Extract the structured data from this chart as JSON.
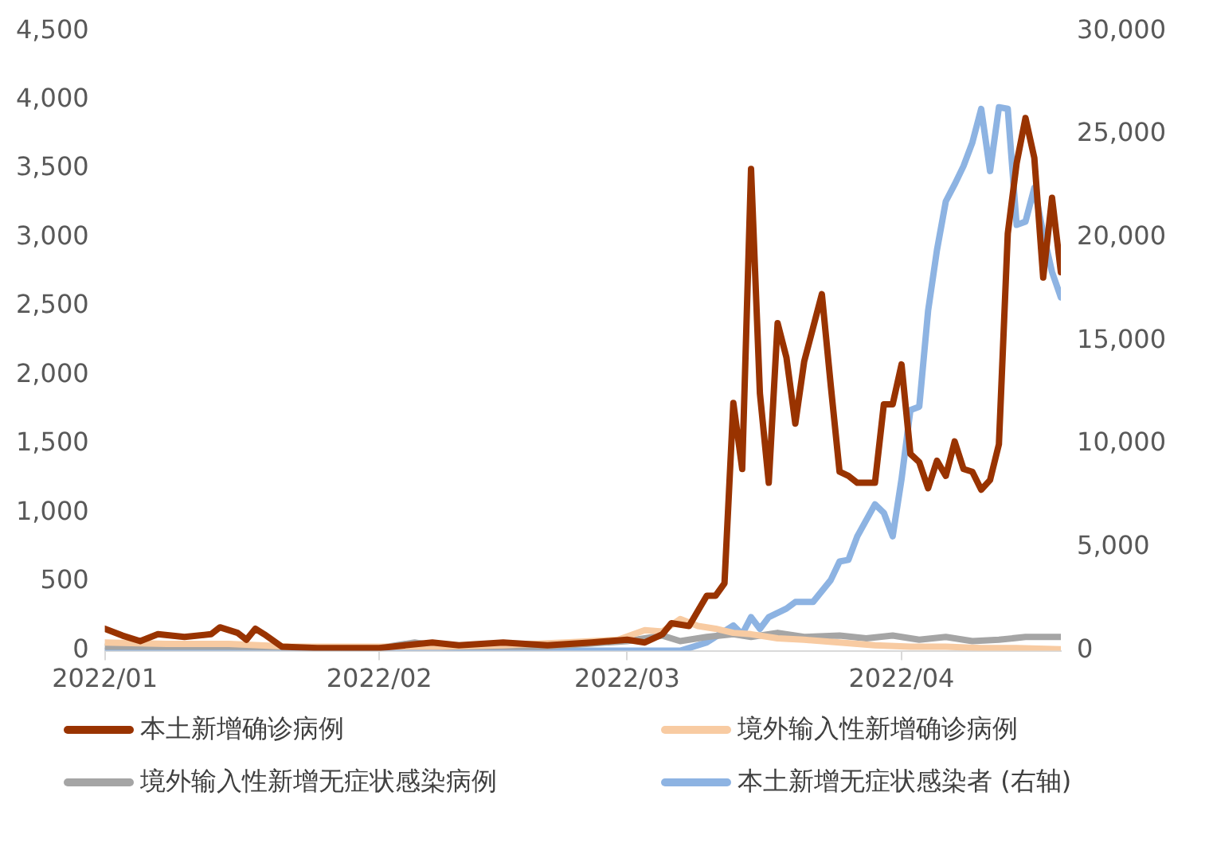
{
  "chart_data": {
    "type": "line",
    "legend": "bottom",
    "grid": false,
    "marker": "none",
    "line_style": "solid",
    "xlim": [
      "2022-01-01",
      "2022-04-19"
    ],
    "xticks": [
      {
        "value": "2022-01-01",
        "label": "2022/01"
      },
      {
        "value": "2022-02-01",
        "label": "2022/02"
      },
      {
        "value": "2022-03-01",
        "label": "2022/03"
      },
      {
        "value": "2022-04-01",
        "label": "2022/04"
      }
    ],
    "ylim": [
      0,
      4500
    ],
    "yticks": [
      0,
      500,
      {
        "value": 1000,
        "label": "1,000"
      },
      {
        "value": 1500,
        "label": "1,500"
      },
      {
        "value": 2000,
        "label": "2,000"
      },
      {
        "value": 2500,
        "label": "2,500"
      },
      {
        "value": 3000,
        "label": "3,000"
      },
      {
        "value": 3500,
        "label": "3,500"
      },
      {
        "value": 4000,
        "label": "4,000"
      },
      {
        "value": 4500,
        "label": "4,500"
      }
    ],
    "y2lim": [
      0,
      30000
    ],
    "y2ticks": [
      0,
      {
        "value": 5000,
        "label": "5,000"
      },
      {
        "value": 10000,
        "label": "10,000"
      },
      {
        "value": 15000,
        "label": "15,000"
      },
      {
        "value": 20000,
        "label": "20,000"
      },
      {
        "value": 25000,
        "label": "25,000"
      },
      {
        "value": 30000,
        "label": "30,000"
      }
    ],
    "series": [
      {
        "name": "本土新增确诊病例",
        "color": "#993300",
        "x": [
          "2022-01-01",
          "2022-01-03",
          "2022-01-05",
          "2022-01-07",
          "2022-01-10",
          "2022-01-13",
          "2022-01-14",
          "2022-01-16",
          "2022-01-17",
          "2022-01-18",
          "2022-01-19",
          "2022-01-21",
          "2022-01-25",
          "2022-02-01",
          "2022-02-07",
          "2022-02-10",
          "2022-02-15",
          "2022-02-20",
          "2022-02-25",
          "2022-03-01",
          "2022-03-03",
          "2022-03-05",
          "2022-03-06",
          "2022-03-08",
          "2022-03-10",
          "2022-03-11",
          "2022-03-12",
          "2022-03-13",
          "2022-03-14",
          "2022-03-15",
          "2022-03-16",
          "2022-03-17",
          "2022-03-18",
          "2022-03-19",
          "2022-03-20",
          "2022-03-21",
          "2022-03-23",
          "2022-03-24",
          "2022-03-25",
          "2022-03-26",
          "2022-03-27",
          "2022-03-29",
          "2022-03-30",
          "2022-03-31",
          "2022-04-01",
          "2022-04-02",
          "2022-04-03",
          "2022-04-04",
          "2022-04-05",
          "2022-04-06",
          "2022-04-07",
          "2022-04-08",
          "2022-04-09",
          "2022-04-10",
          "2022-04-11",
          "2022-04-12",
          "2022-04-13",
          "2022-04-14",
          "2022-04-15",
          "2022-04-16",
          "2022-04-17",
          "2022-04-18",
          "2022-04-19"
        ],
        "values": [
          160,
          110,
          70,
          120,
          100,
          120,
          170,
          130,
          80,
          160,
          120,
          30,
          20,
          20,
          60,
          40,
          60,
          40,
          60,
          80,
          60,
          120,
          200,
          180,
          400,
          400,
          490,
          1800,
          1320,
          3500,
          1870,
          1220,
          2380,
          2130,
          1650,
          2100,
          2590,
          1930,
          1300,
          1270,
          1220,
          1220,
          1790,
          1790,
          2080,
          1430,
          1370,
          1180,
          1380,
          1270,
          1520,
          1320,
          1300,
          1170,
          1240,
          1500,
          3030,
          3540,
          3870,
          3580,
          2710,
          3290,
          2750
        ]
      },
      {
        "name": "境外输入性新增确诊病例",
        "color": "#f8cba2",
        "x": [
          "2022-01-01",
          "2022-01-08",
          "2022-01-15",
          "2022-01-22",
          "2022-02-01",
          "2022-02-08",
          "2022-02-15",
          "2022-02-22",
          "2022-02-28",
          "2022-03-03",
          "2022-03-05",
          "2022-03-07",
          "2022-03-09",
          "2022-03-11",
          "2022-03-13",
          "2022-03-15",
          "2022-03-18",
          "2022-03-21",
          "2022-03-25",
          "2022-03-29",
          "2022-04-02",
          "2022-04-06",
          "2022-04-10",
          "2022-04-14",
          "2022-04-19"
        ],
        "values": [
          60,
          50,
          50,
          30,
          30,
          30,
          40,
          60,
          80,
          150,
          140,
          230,
          180,
          160,
          130,
          120,
          90,
          80,
          60,
          40,
          30,
          30,
          20,
          20,
          10
        ]
      },
      {
        "name": "境外输入性新增无症状感染病例",
        "color": "#a5a5a5",
        "x": [
          "2022-01-01",
          "2022-01-15",
          "2022-02-01",
          "2022-02-05",
          "2022-02-08",
          "2022-02-20",
          "2022-03-01",
          "2022-03-05",
          "2022-03-07",
          "2022-03-10",
          "2022-03-13",
          "2022-03-15",
          "2022-03-18",
          "2022-03-21",
          "2022-03-25",
          "2022-03-28",
          "2022-03-31",
          "2022-04-03",
          "2022-04-06",
          "2022-04-09",
          "2022-04-12",
          "2022-04-15",
          "2022-04-19"
        ],
        "values": [
          30,
          30,
          20,
          60,
          30,
          30,
          70,
          110,
          70,
          100,
          120,
          100,
          130,
          100,
          110,
          90,
          110,
          80,
          100,
          70,
          80,
          100,
          100
        ]
      },
      {
        "name": "本土新增无症状感染者 (右轴)",
        "color": "#8db3e2",
        "axis": "y2",
        "x": [
          "2022-01-01",
          "2022-02-01",
          "2022-03-01",
          "2022-03-07",
          "2022-03-10",
          "2022-03-13",
          "2022-03-14",
          "2022-03-15",
          "2022-03-16",
          "2022-03-17",
          "2022-03-19",
          "2022-03-20",
          "2022-03-22",
          "2022-03-24",
          "2022-03-25",
          "2022-03-26",
          "2022-03-27",
          "2022-03-29",
          "2022-03-30",
          "2022-03-31",
          "2022-04-01",
          "2022-04-02",
          "2022-04-03",
          "2022-04-04",
          "2022-04-05",
          "2022-04-06",
          "2022-04-07",
          "2022-04-08",
          "2022-04-09",
          "2022-04-10",
          "2022-04-11",
          "2022-04-12",
          "2022-04-13",
          "2022-04-14",
          "2022-04-15",
          "2022-04-16",
          "2022-04-17",
          "2022-04-18",
          "2022-04-19"
        ],
        "values": [
          0,
          0,
          0,
          0,
          400,
          1220,
          800,
          1630,
          1060,
          1630,
          2040,
          2360,
          2360,
          3420,
          4320,
          4400,
          5540,
          7090,
          6680,
          5540,
          8310,
          11650,
          11820,
          16460,
          19400,
          21760,
          22580,
          23470,
          24610,
          26240,
          23230,
          26320,
          26240,
          20620,
          20780,
          22410,
          20210,
          18340,
          17110
        ]
      }
    ]
  }
}
